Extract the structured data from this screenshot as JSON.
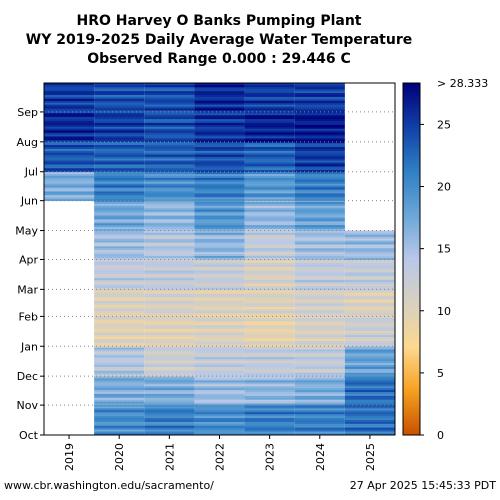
{
  "chart_data": {
    "type": "heatmap",
    "title": [
      "HRO Harvey O Banks Pumping Plant",
      "WY 2019-2025 Daily Average Water Temperature",
      "Observed Range 0.000 : 29.446 C"
    ],
    "xlabel": "",
    "ylabel": "",
    "x_categories": [
      "2019",
      "2020",
      "2021",
      "2022",
      "2023",
      "2024",
      "2025"
    ],
    "y_ticks": [
      "Oct",
      "Nov",
      "Dec",
      "Jan",
      "Feb",
      "Mar",
      "Apr",
      "May",
      "Jun",
      "Jul",
      "Aug",
      "Sep"
    ],
    "grid": true,
    "colorbar": {
      "min": 0,
      "max": 28.333,
      "ticks": [
        0,
        5,
        10,
        15,
        20,
        25
      ],
      "max_label": "> 28.333",
      "colors": [
        "#c85000",
        "#f5a020",
        "#fdd890",
        "#d8d0c0",
        "#b8c8e8",
        "#6aa6d8",
        "#2f7fc4",
        "#1040a8",
        "#00007a"
      ]
    },
    "monthly_means_celsius": [
      {
        "year": "2019",
        "start_month": "Jun",
        "end_month": "Sep",
        "values": [
          null,
          null,
          null,
          null,
          null,
          null,
          null,
          null,
          17,
          23.5,
          26,
          25
        ]
      },
      {
        "year": "2020",
        "values": [
          20,
          17,
          14,
          10,
          10.5,
          13,
          15,
          17.5,
          21,
          23,
          25,
          24
        ]
      },
      {
        "year": "2021",
        "values": [
          21,
          17,
          12,
          10,
          11,
          13,
          14,
          16,
          20,
          23,
          24,
          24
        ]
      },
      {
        "year": "2022",
        "values": [
          20,
          15.5,
          13,
          10.5,
          10.5,
          12.5,
          16,
          19,
          21,
          24,
          25.5,
          26
        ]
      },
      {
        "year": "2023",
        "values": [
          21,
          16,
          13,
          9.5,
          10.5,
          11,
          13,
          16,
          19,
          23,
          26.5,
          25
        ]
      },
      {
        "year": "2024",
        "values": [
          21,
          17,
          13,
          11,
          11.5,
          13,
          15,
          18,
          21,
          25,
          27,
          25
        ]
      },
      {
        "year": "2025",
        "start_month": "Oct",
        "end_month": "Apr",
        "values": [
          22,
          22,
          18,
          12,
          10.5,
          13,
          15.5,
          null,
          null,
          null,
          null,
          null
        ]
      }
    ]
  },
  "footer": {
    "source": "www.cbr.washington.edu/sacramento/",
    "timestamp": "27 Apr 2025 15:45:33 PDT"
  }
}
